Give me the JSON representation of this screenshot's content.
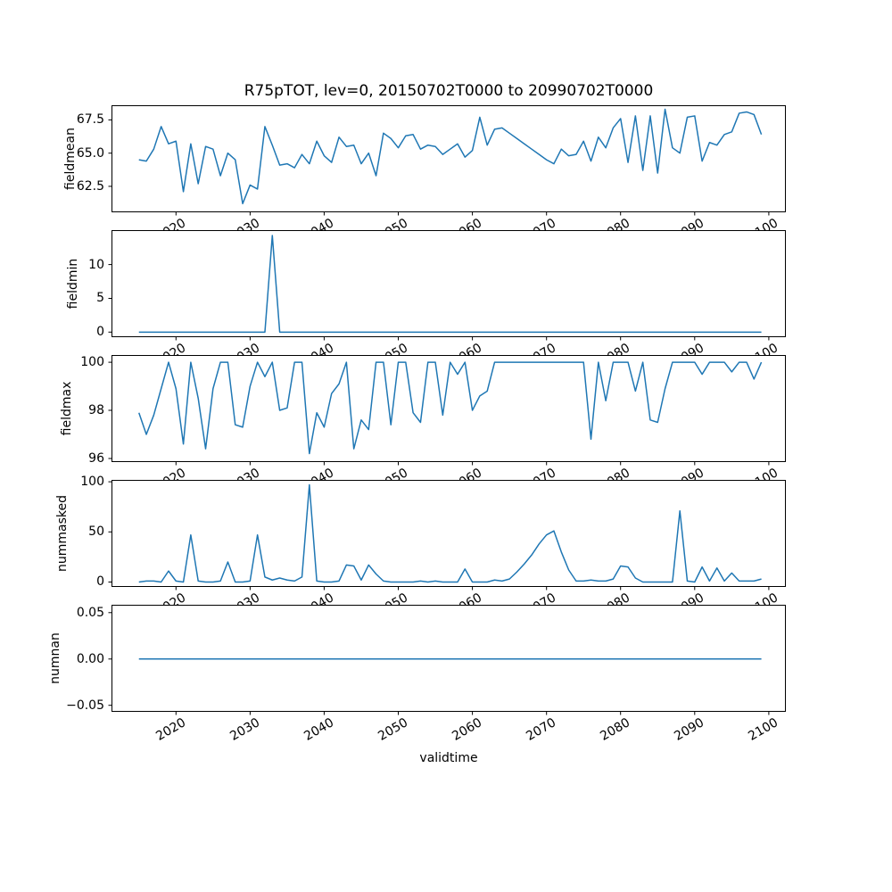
{
  "figure": {
    "background": "#ffffff",
    "text_color": "#000000"
  },
  "chart_data": {
    "type": "line",
    "title": "R75pTOT, lev=0, 20150702T0000 to 20990702T0000",
    "xlabel": "validtime",
    "grid": false,
    "legend": "none",
    "line_color": "#1f77b4",
    "xlim": [
      2011.3,
      2102.3
    ],
    "xticks": [
      2020,
      2030,
      2040,
      2050,
      2060,
      2070,
      2080,
      2090,
      2100
    ],
    "xtick_labels": [
      "2020",
      "2030",
      "2040",
      "2050",
      "2060",
      "2070",
      "2080",
      "2090",
      "2100"
    ],
    "xtick_rotation_deg": 30,
    "x": [
      2015,
      2016,
      2017,
      2018,
      2019,
      2020,
      2021,
      2022,
      2023,
      2024,
      2025,
      2026,
      2027,
      2028,
      2029,
      2030,
      2031,
      2032,
      2033,
      2034,
      2035,
      2036,
      2037,
      2038,
      2039,
      2040,
      2041,
      2042,
      2043,
      2044,
      2045,
      2046,
      2047,
      2048,
      2049,
      2050,
      2051,
      2052,
      2053,
      2054,
      2055,
      2056,
      2057,
      2058,
      2059,
      2060,
      2061,
      2062,
      2063,
      2064,
      2065,
      2066,
      2067,
      2068,
      2069,
      2070,
      2071,
      2072,
      2073,
      2074,
      2075,
      2076,
      2077,
      2078,
      2079,
      2080,
      2081,
      2082,
      2083,
      2084,
      2085,
      2086,
      2087,
      2088,
      2089,
      2090,
      2091,
      2092,
      2093,
      2094,
      2095,
      2096,
      2097,
      2098,
      2099
    ],
    "subplots": [
      {
        "ylabel": "fieldmean",
        "yticks": [
          62.5,
          65.0,
          67.5
        ],
        "ytick_labels": [
          "62.5",
          "65.0",
          "67.5"
        ],
        "ylim": [
          60.55,
          68.6
        ],
        "values": [
          64.5,
          64.4,
          65.3,
          67.0,
          65.7,
          65.9,
          62.1,
          65.7,
          62.7,
          65.5,
          65.3,
          63.3,
          65.0,
          64.5,
          61.2,
          62.6,
          62.3,
          67.0,
          65.6,
          64.1,
          64.2,
          63.9,
          64.9,
          64.2,
          65.9,
          64.8,
          64.3,
          66.2,
          65.5,
          65.6,
          64.2,
          65.0,
          63.3,
          66.5,
          66.1,
          65.4,
          66.3,
          66.4,
          65.3,
          65.6,
          65.5,
          64.9,
          65.3,
          65.7,
          64.7,
          65.2,
          67.7,
          65.6,
          66.8,
          66.9,
          66.5,
          66.1,
          65.7,
          65.3,
          64.9,
          64.5,
          64.2,
          65.3,
          64.8,
          64.9,
          65.9,
          64.4,
          66.2,
          65.4,
          66.9,
          67.6,
          64.3,
          67.8,
          63.7,
          67.8,
          63.5,
          68.3,
          65.4,
          65.0,
          67.7,
          67.8,
          64.4,
          65.8,
          65.6,
          66.4,
          66.6,
          68.0,
          68.1,
          67.9,
          66.4
        ]
      },
      {
        "ylabel": "fieldmin",
        "yticks": [
          0,
          5,
          10
        ],
        "ytick_labels": [
          "0",
          "5",
          "10"
        ],
        "ylim": [
          -0.75,
          15.1
        ],
        "values": [
          0,
          0,
          0,
          0,
          0,
          0,
          0,
          0,
          0,
          0,
          0,
          0,
          0,
          0,
          0,
          0,
          0,
          0,
          14.3,
          0,
          0,
          0,
          0,
          0,
          0,
          0,
          0,
          0,
          0,
          0,
          0,
          0,
          0,
          0,
          0,
          0,
          0,
          0,
          0,
          0,
          0,
          0,
          0,
          0,
          0,
          0,
          0,
          0,
          0,
          0,
          0,
          0,
          0,
          0,
          0,
          0,
          0,
          0,
          0,
          0,
          0,
          0,
          0,
          0,
          0,
          0,
          0,
          0,
          0,
          0,
          0,
          0,
          0,
          0,
          0,
          0,
          0,
          0,
          0,
          0,
          0,
          0,
          0,
          0,
          0
        ]
      },
      {
        "ylabel": "fieldmax",
        "yticks": [
          96,
          98,
          100
        ],
        "ytick_labels": [
          "96",
          "98",
          "100"
        ],
        "ylim": [
          95.85,
          100.3
        ],
        "values": [
          97.9,
          97.0,
          97.8,
          98.9,
          100,
          98.9,
          96.6,
          100,
          98.5,
          96.4,
          98.9,
          100,
          100,
          97.4,
          97.3,
          99.0,
          100,
          99.4,
          100,
          98.0,
          98.1,
          100,
          100,
          96.2,
          97.9,
          97.3,
          98.7,
          99.1,
          100,
          96.4,
          97.6,
          97.2,
          100,
          100,
          97.4,
          100,
          100,
          97.9,
          97.5,
          100,
          100,
          97.8,
          100,
          99.5,
          100,
          98.0,
          98.6,
          98.8,
          100,
          100,
          100,
          100,
          100,
          100,
          100,
          100,
          100,
          100,
          100,
          100,
          100,
          96.8,
          100,
          98.4,
          100,
          100,
          100,
          98.8,
          100,
          97.6,
          97.5,
          98.9,
          100,
          100,
          100,
          100,
          99.5,
          100,
          100,
          100,
          99.6,
          100,
          100,
          99.3,
          100
        ]
      },
      {
        "ylabel": "nummasked",
        "yticks": [
          0,
          50,
          100
        ],
        "ytick_labels": [
          "0",
          "50",
          "100"
        ],
        "ylim": [
          -4.9,
          101.9
        ],
        "values": [
          0,
          1,
          1,
          0,
          11,
          1,
          0,
          47,
          1,
          0,
          0,
          1,
          20,
          0,
          0,
          1,
          47,
          5,
          2,
          4,
          2,
          1,
          5,
          97,
          1,
          0,
          0,
          1,
          17,
          16,
          2,
          17,
          8,
          1,
          0,
          0,
          0,
          0,
          1,
          0,
          1,
          0,
          0,
          0,
          13,
          0,
          0,
          0,
          2,
          1,
          3,
          10,
          18,
          27,
          38,
          47,
          51,
          30,
          12,
          1,
          1,
          2,
          1,
          1,
          3,
          16,
          15,
          4,
          0,
          0,
          0,
          0,
          0,
          71,
          1,
          0,
          15,
          1,
          14,
          1,
          9,
          1,
          1,
          1,
          3
        ]
      },
      {
        "ylabel": "numnan",
        "yticks": [
          -0.05,
          0.0,
          0.05
        ],
        "ytick_labels": [
          "−0.05",
          "0.00",
          "0.05"
        ],
        "ylim": [
          -0.057,
          0.0585
        ],
        "values": [
          0,
          0,
          0,
          0,
          0,
          0,
          0,
          0,
          0,
          0,
          0,
          0,
          0,
          0,
          0,
          0,
          0,
          0,
          0,
          0,
          0,
          0,
          0,
          0,
          0,
          0,
          0,
          0,
          0,
          0,
          0,
          0,
          0,
          0,
          0,
          0,
          0,
          0,
          0,
          0,
          0,
          0,
          0,
          0,
          0,
          0,
          0,
          0,
          0,
          0,
          0,
          0,
          0,
          0,
          0,
          0,
          0,
          0,
          0,
          0,
          0,
          0,
          0,
          0,
          0,
          0,
          0,
          0,
          0,
          0,
          0,
          0,
          0,
          0,
          0,
          0,
          0,
          0,
          0,
          0,
          0,
          0,
          0,
          0,
          0
        ]
      }
    ]
  }
}
